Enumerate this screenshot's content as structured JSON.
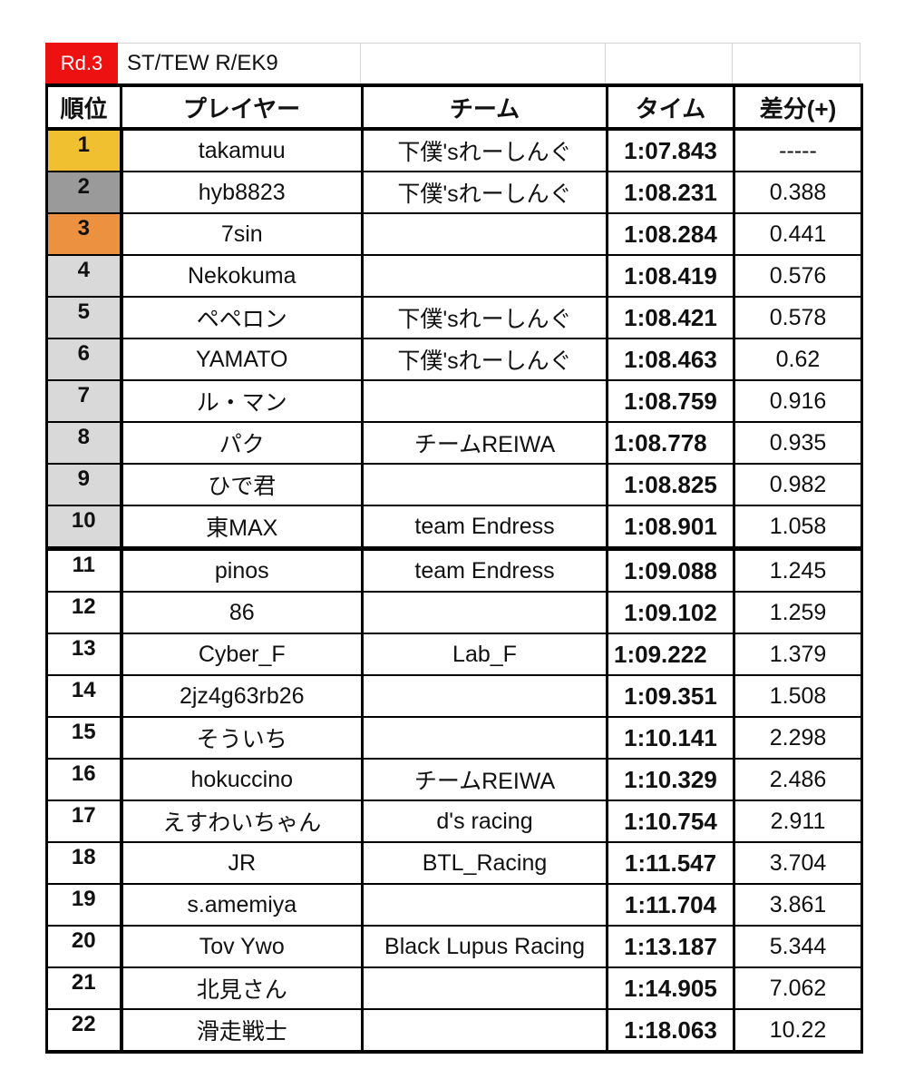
{
  "header": {
    "round_badge": "Rd.3",
    "class_name": "ST/TEW R/EK9",
    "badge_color": "#ee1111"
  },
  "columns": {
    "rank": "順位",
    "player": "プレイヤー",
    "team": "チーム",
    "time": "タイム",
    "diff": "差分(+)"
  },
  "colors": {
    "first": "#f0c030",
    "second": "#9a9a9a",
    "third": "#eb9140",
    "top10": "#d9d9d9"
  },
  "rows": [
    {
      "rank": "1",
      "player": "takamuu",
      "team": "下僕'sれーしんぐ",
      "time": "1:07.843",
      "diff": "-----"
    },
    {
      "rank": "2",
      "player": "hyb8823",
      "team": "下僕'sれーしんぐ",
      "time": "1:08.231",
      "diff": "0.388"
    },
    {
      "rank": "3",
      "player": "7sin",
      "team": "",
      "time": "1:08.284",
      "diff": "0.441"
    },
    {
      "rank": "4",
      "player": "Nekokuma",
      "team": "",
      "time": "1:08.419",
      "diff": "0.576"
    },
    {
      "rank": "5",
      "player": "ペペロン",
      "team": "下僕'sれーしんぐ",
      "time": "1:08.421",
      "diff": "0.578"
    },
    {
      "rank": "6",
      "player": "YAMATO",
      "team": "下僕'sれーしんぐ",
      "time": "1:08.463",
      "diff": "0.62"
    },
    {
      "rank": "7",
      "player": "ル・マン",
      "team": "",
      "time": "1:08.759",
      "diff": "0.916"
    },
    {
      "rank": "8",
      "player": "パク",
      "team": "チームREIWA",
      "time": "1:08.778",
      "diff": "0.935"
    },
    {
      "rank": "9",
      "player": "ひで君",
      "team": "",
      "time": "1:08.825",
      "diff": "0.982"
    },
    {
      "rank": "10",
      "player": "東MAX",
      "team": "team Endress",
      "time": "1:08.901",
      "diff": "1.058"
    },
    {
      "rank": "11",
      "player": "pinos",
      "team": "team Endress",
      "time": "1:09.088",
      "diff": "1.245"
    },
    {
      "rank": "12",
      "player": "86",
      "team": "",
      "time": "1:09.102",
      "diff": "1.259"
    },
    {
      "rank": "13",
      "player": "Cyber_F",
      "team": "Lab_F",
      "time": "1:09.222",
      "diff": "1.379"
    },
    {
      "rank": "14",
      "player": "2jz4g63rb26",
      "team": "",
      "time": "1:09.351",
      "diff": "1.508"
    },
    {
      "rank": "15",
      "player": "そういち",
      "team": "",
      "time": "1:10.141",
      "diff": "2.298"
    },
    {
      "rank": "16",
      "player": "hokuccino",
      "team": "チームREIWA",
      "time": "1:10.329",
      "diff": "2.486"
    },
    {
      "rank": "17",
      "player": "えすわいちゃん",
      "team": "d's racing",
      "time": "1:10.754",
      "diff": "2.911"
    },
    {
      "rank": "18",
      "player": "JR",
      "team": "BTL_Racing",
      "time": "1:11.547",
      "diff": "3.704"
    },
    {
      "rank": "19",
      "player": "s.amemiya",
      "team": "",
      "time": "1:11.704",
      "diff": "3.861"
    },
    {
      "rank": "20",
      "player": "Tov Ywo",
      "team": "Black Lupus Racing",
      "time": "1:13.187",
      "diff": "5.344"
    },
    {
      "rank": "21",
      "player": "北見さん",
      "team": "",
      "time": "1:14.905",
      "diff": "7.062"
    },
    {
      "rank": "22",
      "player": "滑走戦士",
      "team": "",
      "time": "1:18.063",
      "diff": "10.22"
    }
  ]
}
